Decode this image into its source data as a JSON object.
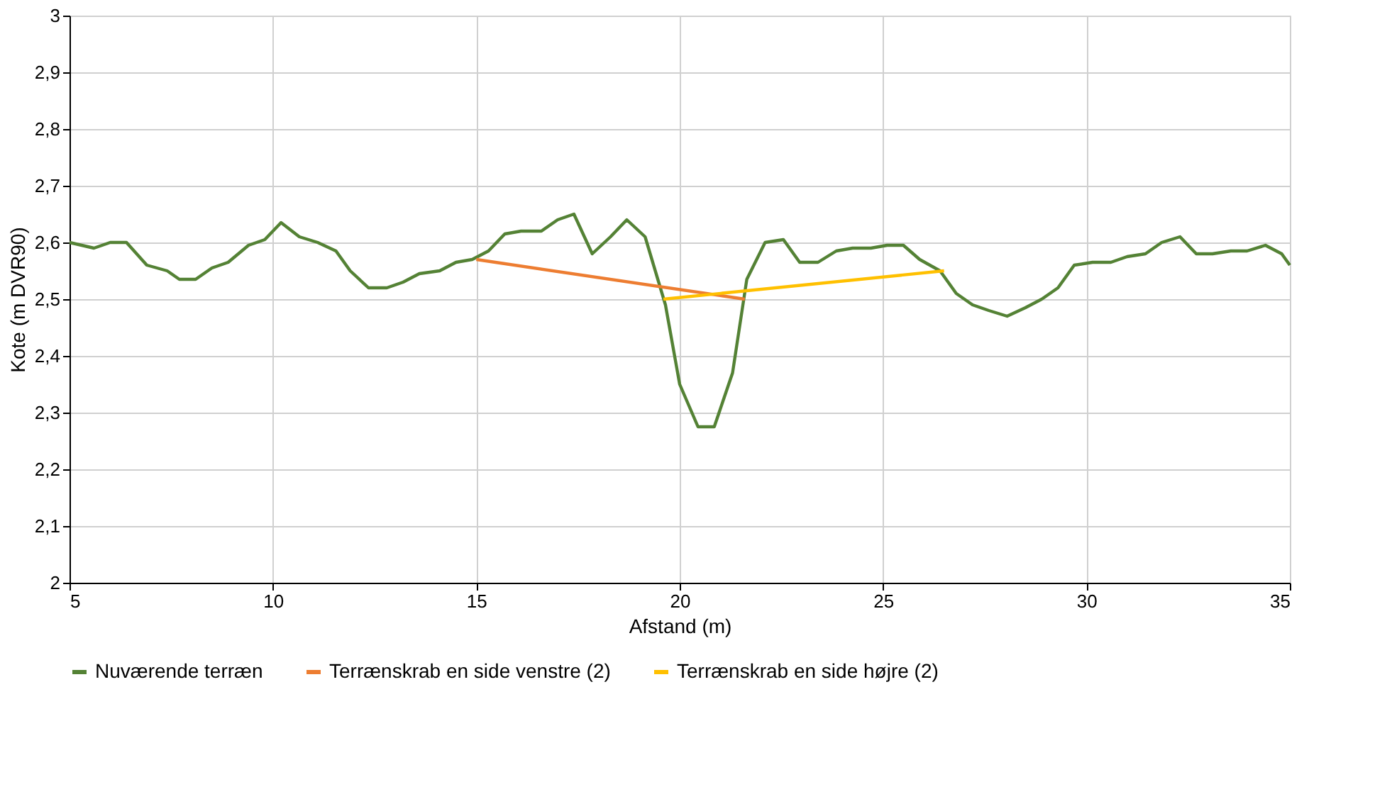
{
  "chart_data": {
    "type": "line",
    "xlabel": "Afstand (m)",
    "ylabel": "Kote (m DVR90)",
    "xlim": [
      5,
      35
    ],
    "xticks": [
      5,
      10,
      15,
      20,
      25,
      30,
      35
    ],
    "ylim": [
      2,
      3
    ],
    "yticks": [
      {
        "value": 2,
        "label": "2"
      },
      {
        "value": 2.1,
        "label": "2,1"
      },
      {
        "value": 2.2,
        "label": "2,2"
      },
      {
        "value": 2.3,
        "label": "2,3"
      },
      {
        "value": 2.4,
        "label": "2,4"
      },
      {
        "value": 2.5,
        "label": "2,5"
      },
      {
        "value": 2.6,
        "label": "2,6"
      },
      {
        "value": 2.7,
        "label": "2,7"
      },
      {
        "value": 2.8,
        "label": "2,8"
      },
      {
        "value": 2.9,
        "label": "2,9"
      },
      {
        "value": 3,
        "label": "3"
      }
    ],
    "grid": true,
    "legend": "bottom",
    "marker": "none",
    "line_style": "solid",
    "series": [
      {
        "name": "Nuværende terræn",
        "color": "#548235",
        "x": [
          5,
          5.6,
          6.0,
          6.4,
          6.9,
          7.4,
          7.7,
          8.1,
          8.5,
          8.9,
          9.4,
          9.8,
          10.2,
          10.65,
          11.1,
          11.55,
          11.9,
          12.35,
          12.8,
          13.2,
          13.6,
          14.1,
          14.5,
          14.9,
          15.3,
          15.7,
          16.1,
          16.6,
          17.0,
          17.4,
          17.85,
          18.3,
          18.7,
          19.15,
          19.65,
          20.0,
          20.45,
          20.85,
          21.3,
          21.65,
          22.1,
          22.55,
          22.95,
          23.4,
          23.85,
          24.25,
          24.7,
          25.1,
          25.5,
          25.9,
          26.4,
          26.8,
          27.2,
          27.6,
          28.05,
          28.5,
          28.9,
          29.3,
          29.7,
          30.15,
          30.6,
          31.0,
          31.45,
          31.85,
          32.3,
          32.7,
          33.1,
          33.55,
          33.95,
          34.4,
          34.8,
          35
        ],
        "values": [
          2.6,
          2.59,
          2.6,
          2.6,
          2.56,
          2.55,
          2.535,
          2.535,
          2.555,
          2.565,
          2.595,
          2.605,
          2.635,
          2.61,
          2.6,
          2.585,
          2.55,
          2.52,
          2.52,
          2.53,
          2.545,
          2.55,
          2.565,
          2.57,
          2.585,
          2.615,
          2.62,
          2.62,
          2.64,
          2.65,
          2.58,
          2.61,
          2.64,
          2.61,
          2.49,
          2.35,
          2.275,
          2.275,
          2.37,
          2.535,
          2.6,
          2.605,
          2.565,
          2.565,
          2.585,
          2.59,
          2.59,
          2.595,
          2.595,
          2.57,
          2.55,
          2.51,
          2.49,
          2.48,
          2.47,
          2.485,
          2.5,
          2.52,
          2.56,
          2.565,
          2.565,
          2.575,
          2.58,
          2.6,
          2.61,
          2.58,
          2.58,
          2.585,
          2.585,
          2.595,
          2.58,
          2.56
        ]
      },
      {
        "name": "Terrænskrab en side venstre (2)",
        "color": "#ed7d31",
        "x": [
          15.0,
          21.6
        ],
        "values": [
          2.57,
          2.5
        ]
      },
      {
        "name": "Terrænskrab en side højre (2)",
        "color": "#ffc000",
        "x": [
          19.6,
          26.5
        ],
        "values": [
          2.5,
          2.55
        ]
      }
    ]
  }
}
